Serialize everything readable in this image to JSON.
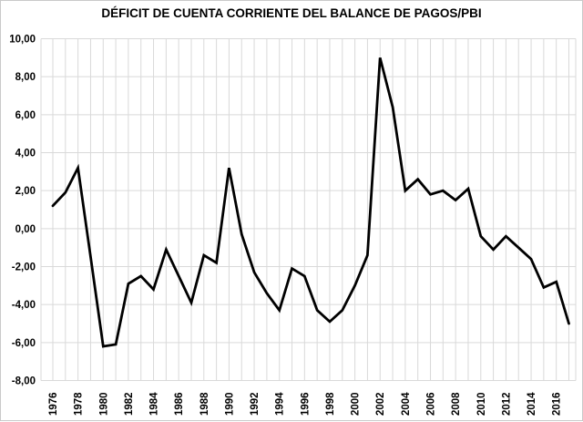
{
  "chart_data": {
    "type": "line",
    "title": "DÉFICIT DE CUENTA CORRIENTE DEL BALANCE DE PAGOS/PBI",
    "x": [
      1976,
      1977,
      1978,
      1979,
      1980,
      1981,
      1982,
      1983,
      1984,
      1985,
      1986,
      1987,
      1988,
      1989,
      1990,
      1991,
      1992,
      1993,
      1994,
      1995,
      1996,
      1997,
      1998,
      1999,
      2000,
      2001,
      2002,
      2003,
      2004,
      2005,
      2006,
      2007,
      2008,
      2009,
      2010,
      2011,
      2012,
      2013,
      2014,
      2015,
      2016,
      2017
    ],
    "values": [
      1.2,
      1.9,
      3.2,
      -1.5,
      -6.2,
      -6.1,
      -2.9,
      -2.5,
      -3.2,
      -1.1,
      -2.5,
      -3.9,
      -1.4,
      -1.8,
      3.2,
      -0.3,
      -2.3,
      -3.4,
      -4.3,
      -2.1,
      -2.5,
      -4.3,
      -4.9,
      -4.3,
      -3.0,
      -1.4,
      9.0,
      6.4,
      2.0,
      2.6,
      1.8,
      2.0,
      1.5,
      2.1,
      -0.4,
      -1.1,
      -0.4,
      -1.0,
      -1.6,
      -3.1,
      -2.8,
      -5.0
    ],
    "ylim": [
      -8,
      10
    ],
    "y_major_unit": 2,
    "y_ticks": [
      {
        "value": 10,
        "label": "10,00"
      },
      {
        "value": 8,
        "label": "8,00"
      },
      {
        "value": 6,
        "label": "6,00"
      },
      {
        "value": 4,
        "label": "4,00"
      },
      {
        "value": 2,
        "label": "2,00"
      },
      {
        "value": 0,
        "label": "0,00"
      },
      {
        "value": -2,
        "label": "-2,00"
      },
      {
        "value": -4,
        "label": "-4,00"
      },
      {
        "value": -6,
        "label": "-6,00"
      },
      {
        "value": -8,
        "label": "-8,00"
      }
    ],
    "x_tick_labels": [
      "1976",
      "1978",
      "1980",
      "1982",
      "1984",
      "1986",
      "1988",
      "1990",
      "1992",
      "1994",
      "1996",
      "1998",
      "2000",
      "2002",
      "2004",
      "2006",
      "2008",
      "2010",
      "2012",
      "2014",
      "2016"
    ],
    "grid": "both",
    "legend": "none",
    "x_label_rotation_deg": 90,
    "decimal_separator": ",",
    "line_color": "#000000",
    "grid_color": "#d9d9d9",
    "text_color": "#000000",
    "background_color": "#ffffff"
  }
}
